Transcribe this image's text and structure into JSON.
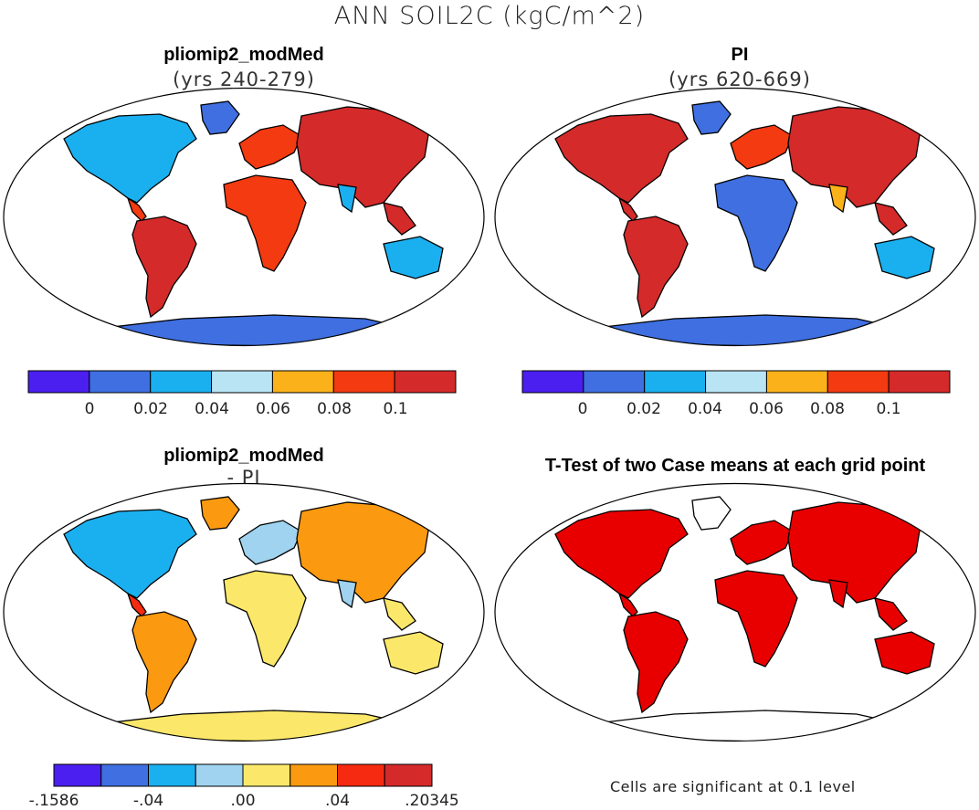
{
  "figure": {
    "title": "ANN SOIL2C (kgC/m^2)"
  },
  "panels": [
    {
      "id": "p1",
      "title": "pliomip2_modMed",
      "subtitle": "(yrs 240-279)"
    },
    {
      "id": "p2",
      "title": "PI",
      "subtitle": "(yrs 620-669)"
    },
    {
      "id": "p3",
      "title": "pliomip2_modMed",
      "subtitle": "- PI"
    },
    {
      "id": "p4",
      "title": "T-Test of two Case means at each grid point",
      "subtitle": ""
    }
  ],
  "colorbars": {
    "absolute": {
      "colors": [
        "#4a1ff0",
        "#3f6fe0",
        "#1ab0f0",
        "#b8e4f4",
        "#fbb21a",
        "#f33a10",
        "#d42a2a"
      ],
      "labels": [
        "0",
        "0.02",
        "0.04",
        "0.06",
        "0.08",
        "0.1"
      ]
    },
    "difference": {
      "colors": [
        "#4a1ff0",
        "#3f6fe0",
        "#1ab0f0",
        "#9fd3ef",
        "#fbe86a",
        "#fb9a10",
        "#f52a10",
        "#d42a2a"
      ],
      "labels": [
        ".1586",
        "-.04",
        ".00",
        ".04",
        ".20345"
      ],
      "first_label_prefix": "-"
    }
  },
  "significance": {
    "color": "#e80000",
    "note": "Cells are significant at 0.1 level"
  },
  "map_colors": {
    "ocean": "#ffffff",
    "coast": "#000000",
    "antarctica_abs": "#3f6fe0",
    "antarctica_diff": "#fbe86a"
  }
}
